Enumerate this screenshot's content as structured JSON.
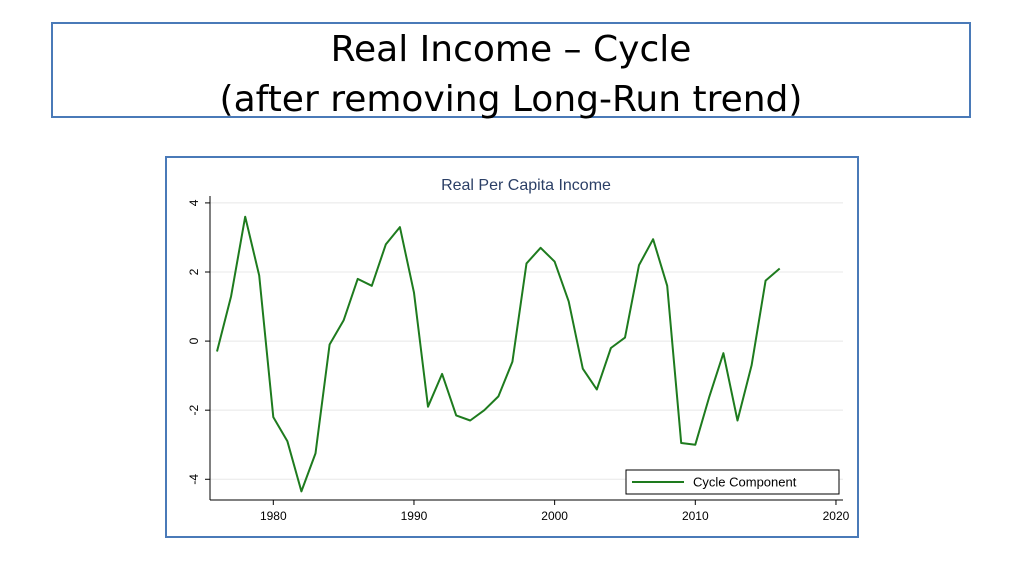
{
  "slide": {
    "title_line1": "Real Income – Cycle",
    "title_line2": "(after removing Long-Run trend)"
  },
  "chart_data": {
    "type": "line",
    "title": "Real Per Capita Income",
    "xlabel": "",
    "ylabel": "",
    "xlim": [
      1975.5,
      2020.5
    ],
    "ylim": [
      -4.6,
      4.2
    ],
    "x_ticks": [
      1980,
      1990,
      2000,
      2010,
      2020
    ],
    "y_ticks": [
      4,
      2,
      0,
      -2,
      -4
    ],
    "grid": true,
    "legend_position": "bottom-right",
    "colors": {
      "line": "#1e7b1e",
      "title": "#2b3f66",
      "grid": "#e8e8e8",
      "axis": "#000000"
    },
    "series": [
      {
        "name": "Cycle Component",
        "x": [
          1976,
          1977,
          1978,
          1979,
          1980,
          1981,
          1982,
          1983,
          1984,
          1985,
          1986,
          1987,
          1988,
          1989,
          1990,
          1991,
          1992,
          1993,
          1994,
          1995,
          1996,
          1997,
          1998,
          1999,
          2000,
          2001,
          2002,
          2003,
          2004,
          2005,
          2006,
          2007,
          2008,
          2009,
          2010,
          2011,
          2012,
          2013,
          2014,
          2015,
          2016
        ],
        "y": [
          -0.3,
          1.3,
          3.6,
          1.9,
          -2.2,
          -2.9,
          -4.35,
          -3.25,
          -0.1,
          0.6,
          1.8,
          1.6,
          2.8,
          3.3,
          1.4,
          -1.9,
          -0.95,
          -2.15,
          -2.3,
          -2.0,
          -1.6,
          -0.6,
          2.25,
          2.7,
          2.3,
          1.15,
          -0.8,
          -1.4,
          -0.2,
          0.1,
          2.2,
          2.95,
          1.6,
          -2.95,
          -3.0,
          -1.6,
          -0.35,
          -2.3,
          -0.7,
          1.75,
          2.1
        ]
      }
    ]
  }
}
